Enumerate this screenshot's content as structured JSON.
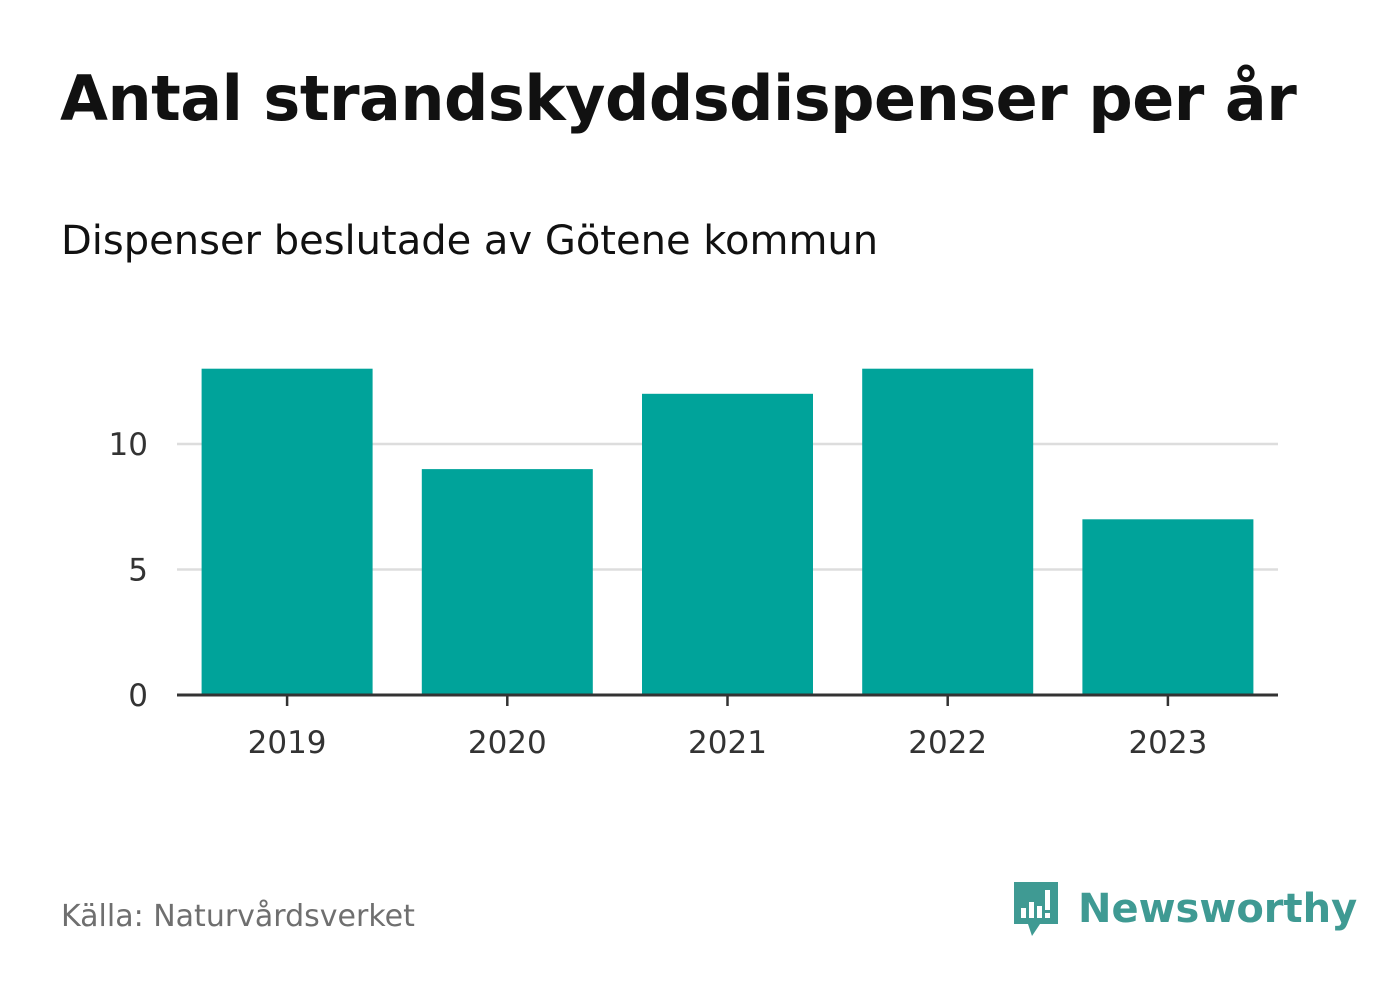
{
  "header": {
    "title": "Antal strandskyddsdispenser per år",
    "subtitle": "Dispenser beslutade av Götene kommun"
  },
  "footer": {
    "source": "Källa: Naturvårdsverket",
    "brand_name": "Newsworthy",
    "brand_icon": "newsworthy-logo-icon"
  },
  "colors": {
    "bar": "#00a39a",
    "grid": "#dddddd",
    "axis": "#333333",
    "brand": "#3f9a93"
  },
  "chart_data": {
    "type": "bar",
    "title": "Antal strandskyddsdispenser per år",
    "subtitle": "Dispenser beslutade av Götene kommun",
    "categories": [
      "2019",
      "2020",
      "2021",
      "2022",
      "2023"
    ],
    "values": [
      13,
      9,
      12,
      13,
      7
    ],
    "xlabel": "",
    "ylabel": "",
    "ylim": [
      0,
      13
    ],
    "yticks": [
      0,
      5,
      10
    ],
    "grid": true,
    "legend": "none"
  }
}
